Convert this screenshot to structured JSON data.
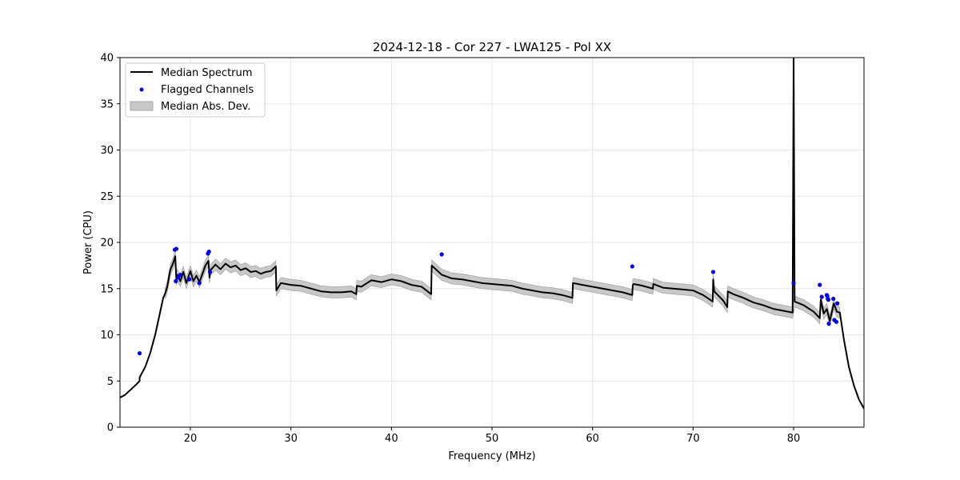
{
  "chart_data": {
    "type": "line",
    "title": "2024-12-18 - Cor 227 - LWA125 - Pol XX",
    "xlabel": "Frequency (MHz)",
    "ylabel": "Power (CPU)",
    "xlim": [
      13.0,
      87.0
    ],
    "ylim": [
      0,
      40
    ],
    "xticks": [
      20,
      30,
      40,
      50,
      60,
      70,
      80
    ],
    "yticks": [
      0,
      5,
      10,
      15,
      20,
      25,
      30,
      35,
      40
    ],
    "grid": true,
    "legend_position": "top-left",
    "colors": {
      "median": "#000000",
      "flagged": "#0000ff",
      "mad": "#c8c8c8",
      "mad_edge": "#999999",
      "grid": "#e6e6e6"
    },
    "legend": [
      {
        "label": "Median Spectrum",
        "kind": "line"
      },
      {
        "label": "Flagged Channels",
        "kind": "point"
      },
      {
        "label": "Median Abs. Dev.",
        "kind": "band"
      }
    ],
    "series": [
      {
        "name": "Median Spectrum",
        "x": [
          13.0,
          13.5,
          14.0,
          14.5,
          14.95,
          14.96,
          15.0,
          15.5,
          16.0,
          16.5,
          17.0,
          17.3,
          17.5,
          17.7,
          18.0,
          18.3,
          18.5,
          18.6,
          18.7,
          19.0,
          19.3,
          19.6,
          20.0,
          20.3,
          20.6,
          20.9,
          21.2,
          21.5,
          21.8,
          21.9,
          22.0,
          22.5,
          23.0,
          23.5,
          24.0,
          24.5,
          25.0,
          25.5,
          26.0,
          26.5,
          27.0,
          27.5,
          28.0,
          28.5,
          28.55,
          29.0,
          30.0,
          31.0,
          32.0,
          33.0,
          34.0,
          35.0,
          36.0,
          36.5,
          36.55,
          37.0,
          38.0,
          39.0,
          40.0,
          41.0,
          42.0,
          43.0,
          43.95,
          44.0,
          45.0,
          46.0,
          47.0,
          48.0,
          49.0,
          50.0,
          51.0,
          52.0,
          53.0,
          54.0,
          55.0,
          56.0,
          57.0,
          58.0,
          58.05,
          59.0,
          60.0,
          61.0,
          62.0,
          63.0,
          63.95,
          64.0,
          64.1,
          65.0,
          66.0,
          66.05,
          67.0,
          68.0,
          69.0,
          70.0,
          71.0,
          71.95,
          72.0,
          72.1,
          73.0,
          73.4,
          73.45,
          74.0,
          75.0,
          76.0,
          77.0,
          78.0,
          79.0,
          79.9,
          80.0,
          80.1,
          81.0,
          82.0,
          82.6,
          82.7,
          83.0,
          83.3,
          83.6,
          84.0,
          84.3,
          84.6,
          85.0,
          85.5,
          86.0,
          86.5,
          87.0
        ],
        "y": [
          3.2,
          3.5,
          4.0,
          4.5,
          5.0,
          5.4,
          5.5,
          6.5,
          8.0,
          10.0,
          12.5,
          14.0,
          14.5,
          15.2,
          17.0,
          17.8,
          18.5,
          16.0,
          16.5,
          15.8,
          16.8,
          15.6,
          16.9,
          15.8,
          16.4,
          15.7,
          16.6,
          17.5,
          18.0,
          16.2,
          17.0,
          17.6,
          17.1,
          17.7,
          17.3,
          17.5,
          17.0,
          17.2,
          16.8,
          16.9,
          16.6,
          16.8,
          16.9,
          17.4,
          14.8,
          15.6,
          15.4,
          15.3,
          15.0,
          14.7,
          14.6,
          14.6,
          14.7,
          14.4,
          15.3,
          15.2,
          15.9,
          15.7,
          16.0,
          15.8,
          15.4,
          15.2,
          14.4,
          17.5,
          16.5,
          16.1,
          16.0,
          15.8,
          15.6,
          15.5,
          15.4,
          15.3,
          15.0,
          14.8,
          14.6,
          14.5,
          14.3,
          14.0,
          15.6,
          15.4,
          15.2,
          15.0,
          14.8,
          14.6,
          14.3,
          15.4,
          15.5,
          15.3,
          15.0,
          15.5,
          15.1,
          15.0,
          14.9,
          14.8,
          14.3,
          13.6,
          16.0,
          14.7,
          13.7,
          13.0,
          14.7,
          14.4,
          14.0,
          13.5,
          13.2,
          12.8,
          12.6,
          12.4,
          40.0,
          13.6,
          13.2,
          12.5,
          11.8,
          13.8,
          12.3,
          12.8,
          11.5,
          13.4,
          12.5,
          12.4,
          9.5,
          6.5,
          4.5,
          3.0,
          2.0
        ]
      }
    ],
    "mad": {
      "name": "Median Abs. Dev.",
      "width": 0.6
    },
    "flagged_points": {
      "name": "Flagged Channels",
      "x": [
        14.95,
        18.45,
        18.6,
        18.55,
        18.8,
        19.0,
        19.9,
        20.9,
        21.75,
        21.85,
        21.95,
        45.0,
        63.95,
        72.0,
        80.0,
        82.6,
        82.8,
        83.3,
        83.35,
        83.4,
        83.45,
        83.5,
        83.95,
        84.05,
        84.25,
        84.35
      ],
      "y": [
        8.0,
        19.2,
        19.3,
        15.8,
        16.2,
        16.5,
        16.0,
        15.6,
        18.8,
        19.0,
        16.8,
        18.7,
        17.4,
        16.8,
        15.6,
        15.4,
        14.1,
        14.3,
        14.2,
        13.9,
        13.8,
        11.2,
        13.9,
        11.6,
        11.4,
        13.4
      ]
    }
  }
}
